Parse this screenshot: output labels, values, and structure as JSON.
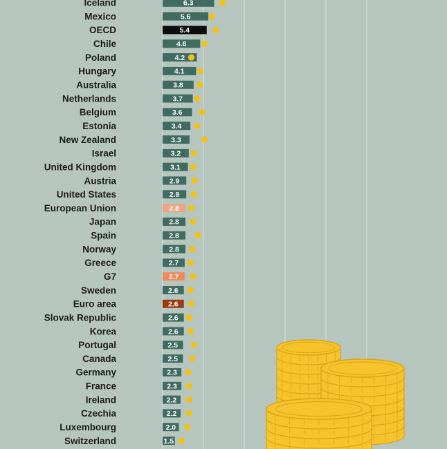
{
  "chart_data": {
    "type": "bar",
    "orientation": "horizontal",
    "categories": [
      "Iceland",
      "Mexico",
      "OECD",
      "Chile",
      "Poland",
      "Hungary",
      "Australia",
      "Netherlands",
      "Belgium",
      "Estonia",
      "New Zealand",
      "Israel",
      "United Kingdom",
      "Austria",
      "United States",
      "European Union",
      "Japan",
      "Spain",
      "Norway",
      "Greece",
      "G7",
      "Sweden",
      "Euro area",
      "Slovak Republic",
      "Korea",
      "Portugal",
      "Canada",
      "Germany",
      "France",
      "Ireland",
      "Czechia",
      "Luxembourg",
      "Switzerland"
    ],
    "series": [
      {
        "values": [
          6.3,
          5.6,
          5.4,
          4.6,
          4.2,
          4.1,
          3.8,
          3.7,
          3.6,
          3.4,
          3.3,
          3.2,
          3.1,
          2.9,
          2.9,
          2.8,
          2.8,
          2.8,
          2.8,
          2.7,
          2.7,
          2.6,
          2.6,
          2.6,
          2.6,
          2.5,
          2.5,
          2.3,
          2.3,
          2.2,
          2.2,
          2.0,
          1.5
        ]
      },
      {
        "values": [
          6.3,
          5.0,
          5.5,
          4.1,
          2.5,
          3.6,
          3.5,
          3.2,
          3.8,
          3.2,
          4.1,
          2.8,
          2.7,
          2.9,
          2.8,
          2.5,
          2.7,
          3.3,
          2.6,
          2.4,
          2.7,
          2.4,
          2.5,
          2.2,
          2.4,
          2.8,
          2.6,
          2.1,
          2.2,
          2.2,
          2.2,
          2.0,
          1.3
        ],
        "marker": "dot"
      }
    ],
    "value_labels": [
      "6.3",
      "5.6",
      "5.4",
      "4.6",
      "4.2",
      "4.1",
      "3.8",
      "3.7",
      "3.6",
      "3.4",
      "3.3",
      "3.2",
      "3.1",
      "2.9",
      "2.9",
      "2.8",
      "2.8",
      "2.8",
      "2.8",
      "2.7",
      "2.7",
      "2.6",
      "2.6",
      "2.6",
      "2.6",
      "2.5",
      "2.5",
      "2.3",
      "2.3",
      "2.2",
      "2.2",
      "2.0",
      "1.5"
    ],
    "bar_colors": [
      "#3f6b61",
      "#3f6b61",
      "#0c0c0c",
      "#3f6b61",
      "#3f6b61",
      "#3f6b61",
      "#3f6b61",
      "#3f6b61",
      "#3f6b61",
      "#3f6b61",
      "#3f6b61",
      "#3f6b61",
      "#3f6b61",
      "#3f6b61",
      "#3f6b61",
      "#e8a684",
      "#3f6b61",
      "#3f6b61",
      "#3f6b61",
      "#3f6b61",
      "#ef8a5a",
      "#3f6b61",
      "#9a3b12",
      "#3f6b61",
      "#3f6b61",
      "#3f6b61",
      "#3f6b61",
      "#3f6b61",
      "#3f6b61",
      "#3f6b61",
      "#3f6b61",
      "#3f6b61",
      "#3f6b61"
    ],
    "dot_color": "#f2c119",
    "xlim": [
      0,
      12
    ],
    "grid": true,
    "legend": "none"
  },
  "decoration": {
    "coin_color": "#f6c32c",
    "coin_edge": "#d9a514",
    "icon": "coin-stack-icon"
  }
}
